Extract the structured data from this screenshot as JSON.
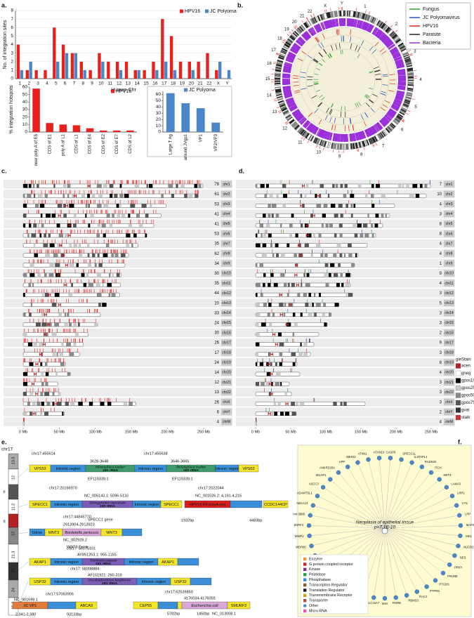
{
  "chart_data": [
    {
      "type": "bar",
      "panel_label": "a.",
      "ylabel": "No. of integration sites",
      "xlabel": "Human Chr",
      "categories": [
        "1",
        "2",
        "3",
        "4",
        "5",
        "6",
        "7",
        "8",
        "9",
        "10",
        "11",
        "12",
        "13",
        "14",
        "15",
        "16",
        "17",
        "18",
        "19",
        "20",
        "21",
        "22",
        "X",
        "Y"
      ],
      "series": [
        {
          "name": "HPV16",
          "color": "#e8211c",
          "values": [
            4,
            1,
            1,
            1,
            6,
            4,
            3,
            2,
            1,
            3,
            2,
            2,
            2,
            1,
            1,
            2,
            7,
            5,
            2,
            2,
            2,
            3,
            1,
            0
          ]
        },
        {
          "name": "JC Polyoma",
          "color": "#4a86c8",
          "values": [
            1,
            2,
            0,
            0,
            2,
            3,
            3,
            1,
            0,
            2,
            0,
            1,
            0,
            1,
            0,
            1,
            2,
            1,
            0,
            1,
            0,
            0,
            2,
            1
          ]
        }
      ],
      "ylim": [
        0,
        8
      ],
      "yticks": [
        0,
        1,
        2,
        3,
        4,
        5,
        6,
        7,
        8
      ],
      "grid": true
    },
    {
      "type": "bar",
      "ylabel": "% integration hotspots",
      "legend": "HPV16",
      "color": "#e8211c",
      "categories": [
        "near poly A of E5",
        "CDS of E1",
        "poly A of L1",
        "CDS of L1",
        "CDS of E4",
        "CDS of E2",
        "CDS of E7",
        "CDS of L2"
      ],
      "values": [
        58,
        12,
        10,
        9,
        5,
        2,
        2,
        2
      ],
      "ylim": [
        0,
        60
      ],
      "yticks": [
        0,
        10,
        20,
        30,
        40,
        50,
        60
      ]
    },
    {
      "type": "bar",
      "legend": "JC Polyoma",
      "color": "#4a86c8",
      "categories": [
        "Large T Ag",
        "around JVgp1",
        "VP1",
        "VP2/VP3"
      ],
      "values": [
        62,
        46,
        38,
        15
      ],
      "ylim": [
        0,
        65
      ],
      "yticks": [
        0,
        10,
        20,
        30,
        40,
        50,
        60
      ]
    }
  ],
  "panel_b": {
    "label": "b.",
    "legend": [
      {
        "name": "Fungus",
        "color": "#2ca02c"
      },
      {
        "name": "JC Polyomavirus",
        "color": "#2a52c8"
      },
      {
        "name": "HPV16",
        "color": "#e8211c"
      },
      {
        "name": "Parasite",
        "color": "#222222"
      },
      {
        "name": "Bacteria",
        "color": "#9b30d9"
      }
    ],
    "chromosomes": [
      "1",
      "2",
      "3",
      "4",
      "5",
      "6",
      "7",
      "8",
      "9",
      "10",
      "11",
      "12",
      "13",
      "14",
      "15",
      "16",
      "17",
      "18",
      "19",
      "20",
      "21",
      "22",
      "X",
      "Y"
    ]
  },
  "panel_c": {
    "label": "c.",
    "chromosomes": [
      "chr1",
      "chr2",
      "chr3",
      "chr4",
      "chr5",
      "chr6",
      "chr7",
      "chr8",
      "chr9",
      "chr10",
      "chr11",
      "chr12",
      "chr13",
      "chr14",
      "chr15",
      "chr16",
      "chr17",
      "chr18",
      "chr19",
      "chr20",
      "chr21",
      "chr22",
      "chrX",
      "chrY",
      "chrM"
    ],
    "counts": [
      78,
      61,
      53,
      41,
      41,
      53,
      35,
      62,
      34,
      30,
      35,
      44,
      20,
      33,
      24,
      30,
      26,
      17,
      24,
      14,
      12,
      13,
      26,
      6,
      4
    ],
    "lengths": [
      249,
      243,
      198,
      191,
      181,
      171,
      159,
      146,
      141,
      136,
      135,
      134,
      115,
      107,
      102,
      90,
      83,
      78,
      59,
      63,
      48,
      51,
      156,
      57,
      0.02
    ],
    "xlim": [
      0,
      250
    ],
    "xticks": [
      {
        "value": 0,
        "label": "0 Mb"
      },
      {
        "value": 50,
        "label": "50 Mb"
      },
      {
        "value": 100,
        "label": "100 Mb"
      },
      {
        "value": 150,
        "label": "150 Mb"
      },
      {
        "value": 200,
        "label": "200 Mb"
      },
      {
        "value": 250,
        "label": "250 Mb"
      }
    ],
    "mark_color": "#e8211c"
  },
  "panel_d": {
    "label": "d.",
    "chromosomes": [
      "chr1",
      "chr2",
      "chr3",
      "chr4",
      "chr5",
      "chr6",
      "chr7",
      "chr8",
      "chr9",
      "chr10",
      "chr11",
      "chr12",
      "chr13",
      "chr14",
      "chr15",
      "chr16",
      "chr17",
      "chr18",
      "chr19",
      "chr20",
      "chr21",
      "chr22",
      "chrX",
      "chrY",
      "chrM"
    ],
    "counts": [
      7,
      10,
      4,
      3,
      8,
      8,
      4,
      4,
      1,
      9,
      4,
      3,
      5,
      3,
      3,
      2,
      9,
      3,
      8,
      4,
      3,
      3,
      3,
      2,
      4
    ],
    "xlim": [
      0,
      250
    ],
    "xticks": [
      {
        "value": 0,
        "label": "0 Mb"
      },
      {
        "value": 50,
        "label": "50 Mb"
      },
      {
        "value": 100,
        "label": "100 Mb"
      },
      {
        "value": 150,
        "label": "150 Mb"
      },
      {
        "value": 200,
        "label": "200 Mb"
      },
      {
        "value": 250,
        "label": "250 Mb"
      }
    ],
    "legend_title": "gieStain",
    "stains": [
      {
        "name": "acen",
        "color": "#b22222"
      },
      {
        "name": "gneg",
        "color": "#ffffff"
      },
      {
        "name": "gpos100",
        "color": "#000000"
      },
      {
        "name": "gpos25",
        "color": "#c8c8c8"
      },
      {
        "name": "gpos50",
        "color": "#888888"
      },
      {
        "name": "gpos75",
        "color": "#555555"
      },
      {
        "name": "gvar",
        "color": "#333333"
      },
      {
        "name": "stalk",
        "color": "#cc3333"
      }
    ]
  },
  "panel_e": {
    "label": "e.",
    "chromosome": "chr17",
    "bands": [
      "13.3",
      "12",
      "p",
      "11.2",
      "q",
      "12",
      "21.3",
      "22",
      "24",
      "25.3"
    ],
    "rows": [
      [
        "chr17:455614",
        "chr17:455638",
        "3628-3648",
        "3646-3665",
        "VPS53",
        "Intronic region",
        "Pleistophora mulleri",
        "16S rRNA",
        "Intronic region",
        "Pleistophora mulleri",
        "16S rRNA",
        "Intronic region",
        "VPS53",
        "EF119339.1",
        "EF119339.1"
      ],
      [
        "chr17:20166970",
        "chr17:2022044",
        "NC_005143.1: 5096-5116",
        "NC_001526.2: 4,191-4,215",
        "SPECC1",
        "Intronic region",
        "Strongyloides stercoralis",
        "18S rRNA",
        "Intronic region",
        "SPECC1",
        "HPV16 E5 polyA seq",
        "CCDC144CP",
        "SPECC1 gene",
        "1932bp",
        "4483bp"
      ],
      [
        "chr17:44845770",
        "2913904-2913923",
        "Intron",
        "WNT3",
        "Bordetella pertussis",
        "WNT3",
        "NC_002929.2",
        "WNT3 Exon"
      ],
      [
        "chr17: 55175101",
        "AY851263.1: 955-1155",
        "AKAP1",
        "Intronic region",
        "Trichinella papuae",
        "18S rRNA",
        "Intronic region",
        "AKAP1"
      ],
      [
        "chr17: 58398884",
        "AF151921: 260-319",
        "USP32",
        "Intronic region",
        "Prosthodendrium longiforme",
        "28S rRNA",
        "Intronic region",
        "USP32"
      ],
      [
        "chr17:57063906",
        "NC_001699.1",
        "JC VP1",
        "ABCA9",
        "2,341-2,380",
        "93133bp",
        "chr17:62539850",
        "4176034-4176055",
        "CEP55",
        "Escherichia coli",
        "SMURF2",
        "5782bp",
        "1450bp",
        "NC_013008.1"
      ]
    ]
  },
  "panel_f": {
    "label": "f.",
    "center": [
      "Neoplasia of epithelial tissue",
      "p=7.1E-10"
    ],
    "nodes": [
      "CASP8",
      "SPECC1L",
      "IL1RAPL1",
      "RAD51B",
      "ITCH",
      "NRT3",
      "LAMA3",
      "LRP2",
      "LYN",
      "LPP",
      "MAP2K1",
      "ME1",
      "NUCB2",
      "NES",
      "PRKY",
      "PRUNE",
      "PTGDS",
      "PTPRG",
      "RAC2",
      "RBMS3",
      "RORB",
      "SHH",
      "SLC16A7",
      "SLC9A9",
      "SMC2",
      "SPECC1",
      "SRCAP",
      "SETBP1",
      "TGS1",
      "WDR7",
      "WDR60",
      "WWP2",
      "ZNRF2",
      "mir-3688",
      "ABCA13",
      "ADAMTSL1",
      "ASCC3",
      "MUAP1",
      "ANKRD30A",
      "APP",
      "ABHD2",
      "ATXN1",
      "ATXN10"
    ],
    "legend": [
      "Enzyme",
      "G protein coupled receptor",
      "Kinase",
      "Peptidase",
      "Phosphatase",
      "Transcription Regulator",
      "Translation Regulator",
      "Transmembrane Receptor",
      "Transporter",
      "Other",
      "Micro RNA"
    ]
  }
}
